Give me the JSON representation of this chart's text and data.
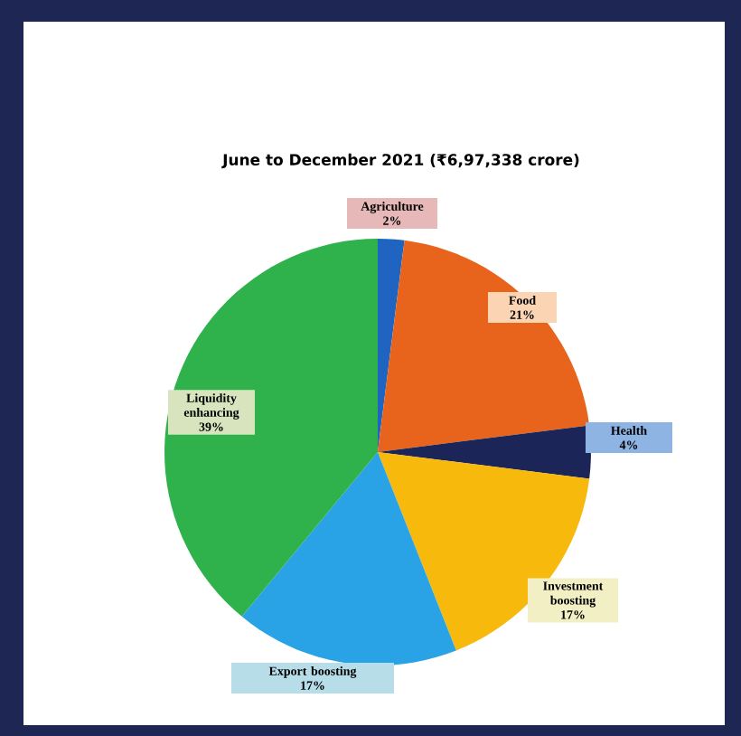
{
  "chart_data": {
    "type": "pie",
    "title": "June to December 2021 (₹6,97,338 crore)",
    "categories": [
      "Agriculture",
      "Food",
      "Health",
      "Investment boosting",
      "Export boosting",
      "Liquidity enhancing"
    ],
    "values": [
      2,
      21,
      4,
      17,
      17,
      39
    ],
    "colors": [
      "#1f64c0",
      "#e8641c",
      "#1c2558",
      "#f6b90c",
      "#2aa2e6",
      "#2fb14c"
    ],
    "value_labels": [
      "2%",
      "21%",
      "4%",
      "17%",
      "17%",
      "39%"
    ]
  }
}
